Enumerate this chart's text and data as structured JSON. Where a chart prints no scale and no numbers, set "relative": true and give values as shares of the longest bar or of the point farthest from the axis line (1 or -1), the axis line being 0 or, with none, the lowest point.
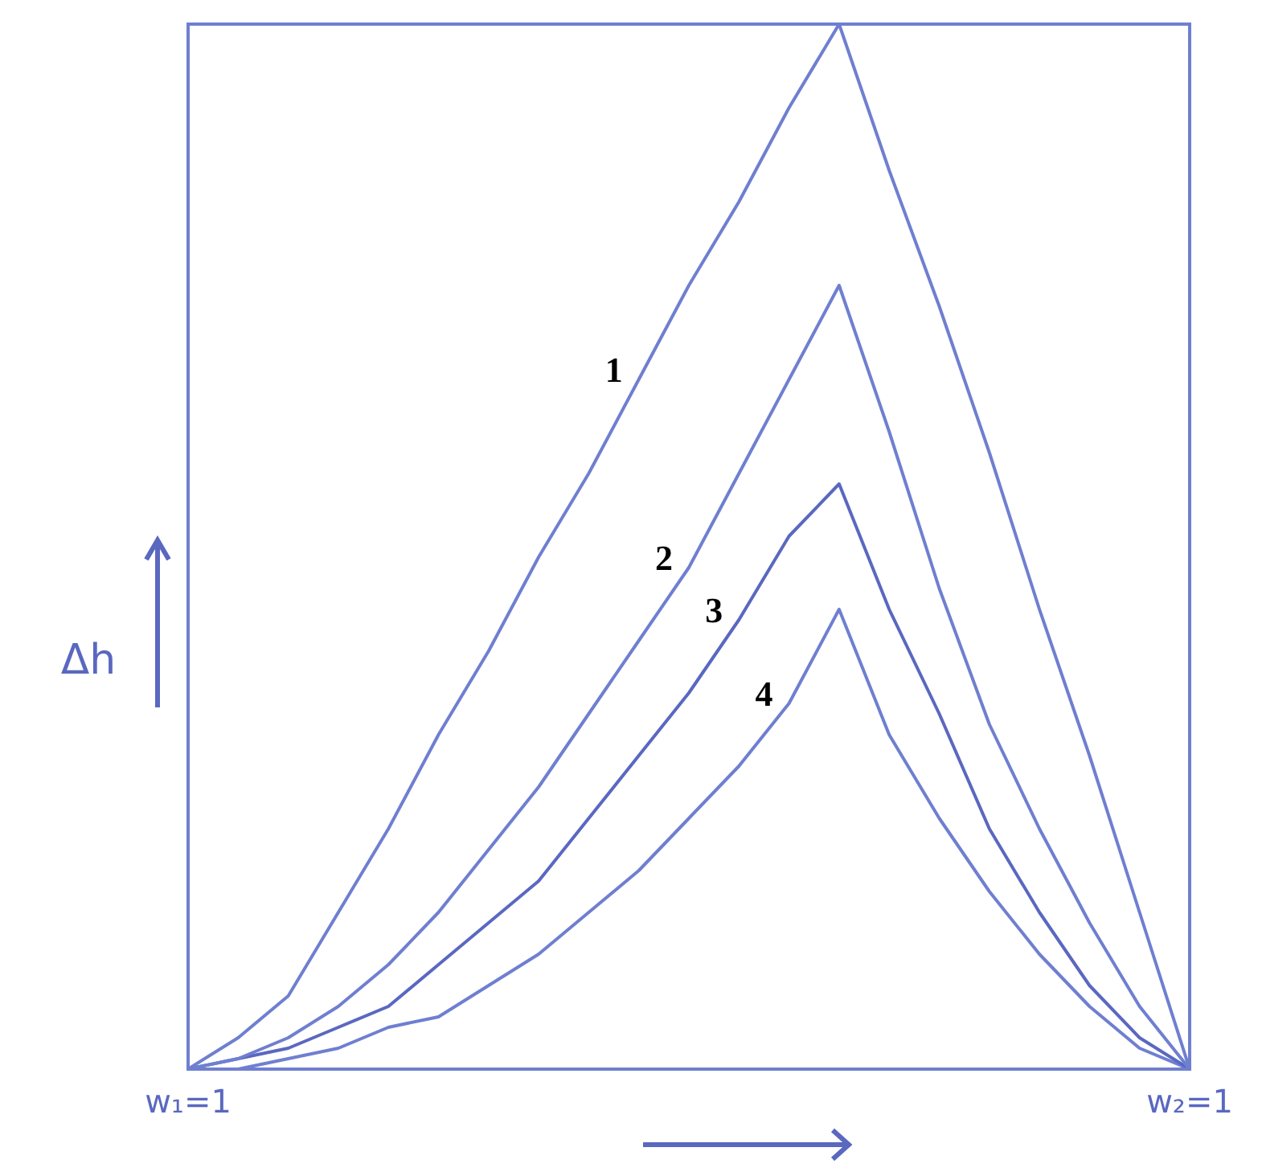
{
  "chart_data": {
    "type": "line",
    "relative": true,
    "ylabel": "Δh",
    "grid": false,
    "legend": false,
    "marker": "none",
    "line_style": "solid",
    "categories": [
      "w₁=1",
      null,
      null,
      null,
      null,
      null,
      null,
      null,
      null,
      null,
      null,
      null,
      null,
      null,
      null,
      null,
      null,
      null,
      null,
      null,
      "w₂=1"
    ],
    "series": [
      {
        "name": "1",
        "color": "#6f7fd0",
        "values": [
          0,
          0.03,
          0.07,
          0.15,
          0.23,
          0.32,
          0.4,
          0.49,
          0.57,
          0.66,
          0.75,
          0.83,
          0.92,
          1,
          0.86,
          0.73,
          0.59,
          0.44,
          0.3,
          0.15,
          0
        ]
      },
      {
        "name": "2",
        "color": "#6f7fd0",
        "values": [
          0,
          0.01,
          0.03,
          0.06,
          0.1,
          0.15,
          0.21,
          0.27,
          0.34,
          0.41,
          0.48,
          0.57,
          0.66,
          0.75,
          0.61,
          0.46,
          0.33,
          0.23,
          0.14,
          0.06,
          0
        ]
      },
      {
        "name": "3",
        "color": "#5a68c0",
        "values": [
          0,
          0.01,
          0.02,
          0.04,
          0.06,
          0.1,
          0.14,
          0.18,
          0.24,
          0.3,
          0.36,
          0.43,
          0.51,
          0.56,
          0.44,
          0.34,
          0.23,
          0.15,
          0.08,
          0.03,
          0
        ]
      },
      {
        "name": "4",
        "color": "#6f7fd0",
        "values": [
          0,
          0,
          0.01,
          0.02,
          0.04,
          0.05,
          0.08,
          0.11,
          0.15,
          0.19,
          0.24,
          0.29,
          0.35,
          0.44,
          0.32,
          0.24,
          0.17,
          0.11,
          0.06,
          0.02,
          0
        ]
      }
    ]
  }
}
